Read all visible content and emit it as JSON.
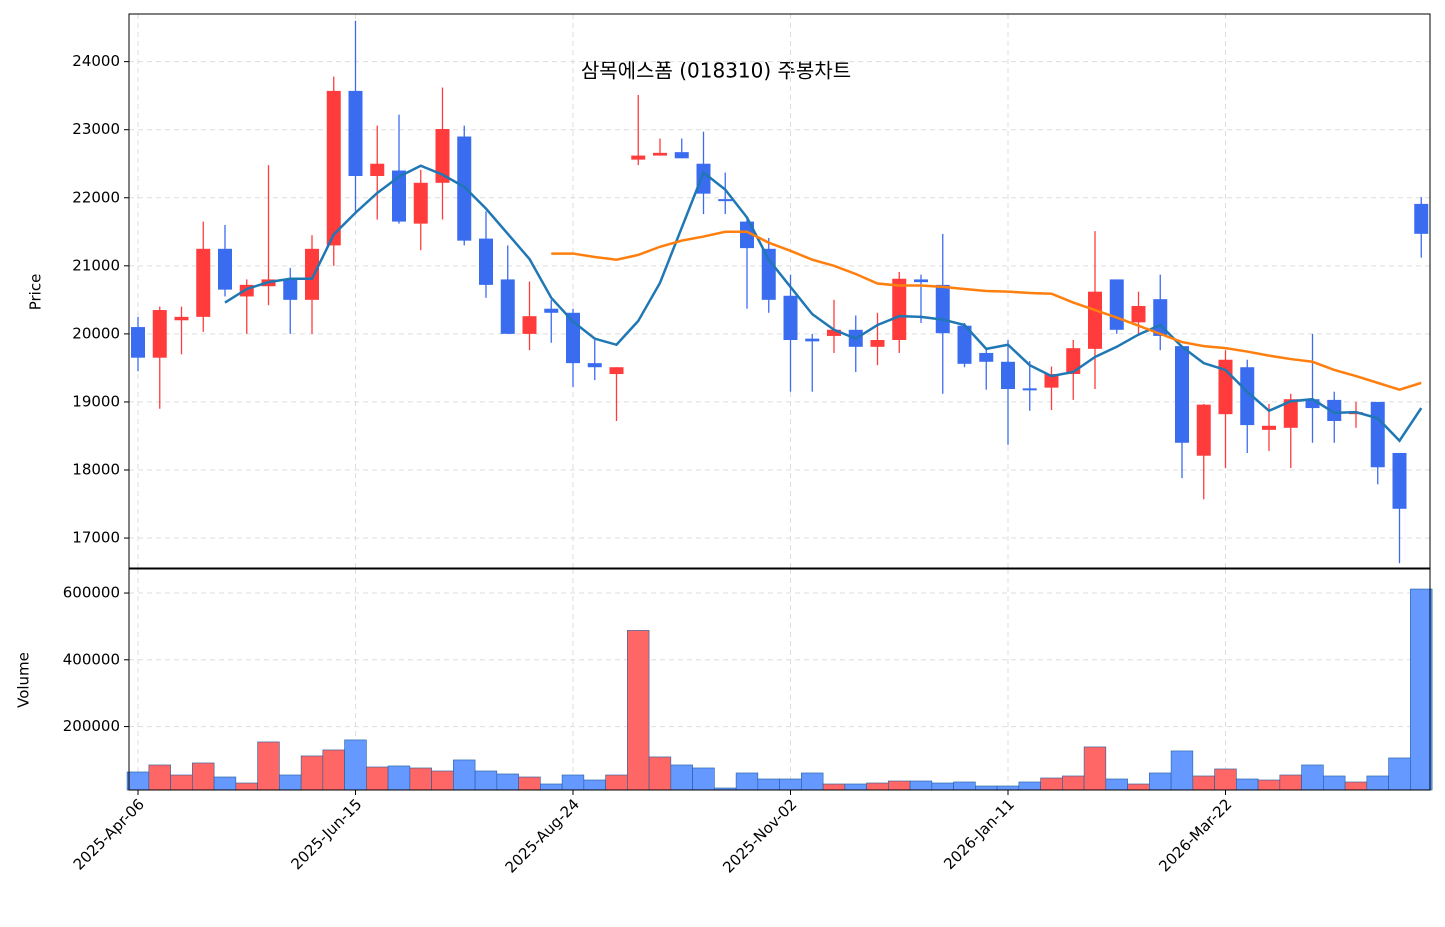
{
  "chart_data": {
    "type": "candlestick",
    "title": "삼목에스폼 (018310) 주봉차트",
    "ylabel": "Price",
    "categories": [
      "2025-Apr-06",
      null,
      null,
      null,
      null,
      null,
      null,
      null,
      null,
      null,
      "2025-Jun-15",
      null,
      null,
      null,
      null,
      null,
      null,
      null,
      null,
      null,
      "2025-Aug-24",
      null,
      null,
      null,
      null,
      null,
      null,
      null,
      null,
      null,
      "2025-Nov-02",
      null,
      null,
      null,
      null,
      null,
      null,
      null,
      null,
      null,
      "2026-Jan-11",
      null,
      null,
      null,
      null,
      null,
      null,
      null,
      null,
      null,
      "2026-Mar-22",
      null,
      null,
      null,
      null,
      null,
      null,
      null,
      null,
      null
    ],
    "open": [
      20100,
      19650,
      20200,
      20250,
      21250,
      20550,
      20700,
      20800,
      20500,
      21300,
      23570,
      22320,
      22400,
      21620,
      22220,
      22900,
      21400,
      20800,
      20000,
      20370,
      20310,
      19570,
      19410,
      22560,
      22620,
      22670,
      22500,
      21980,
      21650,
      21250,
      20560,
      19930,
      19970,
      20060,
      19810,
      19910,
      20800,
      20720,
      20120,
      19720,
      19590,
      19200,
      19210,
      19410,
      19780,
      20800,
      20170,
      20510,
      19820,
      18210,
      18820,
      19510,
      18590,
      18620,
      19040,
      19030,
      18820,
      19000,
      18250,
      21910
    ],
    "high": [
      20250,
      20400,
      20400,
      21650,
      21600,
      20800,
      22480,
      20970,
      21450,
      23780,
      24600,
      23060,
      23220,
      22410,
      23620,
      23060,
      21800,
      21300,
      20770,
      20500,
      20370,
      19910,
      19510,
      23510,
      22870,
      22870,
      22970,
      22370,
      21720,
      21410,
      20870,
      20000,
      20500,
      20270,
      20310,
      20910,
      20870,
      21470,
      20160,
      19800,
      19910,
      19600,
      19520,
      19910,
      21510,
      20800,
      20620,
      20870,
      19820,
      18970,
      19760,
      19620,
      18970,
      19120,
      20000,
      19150,
      19000,
      19000,
      18250,
      22010
    ],
    "low": [
      19450,
      18900,
      19700,
      20030,
      20550,
      20000,
      20420,
      20000,
      20000,
      21000,
      21800,
      21680,
      21620,
      21230,
      21680,
      21300,
      20530,
      20000,
      19760,
      19870,
      19220,
      19320,
      18720,
      22480,
      22620,
      22580,
      21760,
      21760,
      20370,
      20310,
      19150,
      19150,
      19720,
      19440,
      19540,
      19720,
      20160,
      19120,
      19510,
      19180,
      18370,
      18870,
      18880,
      19030,
      19190,
      20000,
      19970,
      19760,
      17880,
      17570,
      18030,
      18250,
      18280,
      18030,
      18400,
      18400,
      18620,
      17790,
      16630,
      21120
    ],
    "close": [
      19650,
      20350,
      20250,
      21250,
      20650,
      20720,
      20800,
      20500,
      21250,
      23570,
      22320,
      22500,
      21650,
      22220,
      23010,
      21370,
      20720,
      20000,
      20260,
      20310,
      19570,
      19510,
      19510,
      22620,
      22660,
      22580,
      22060,
      21950,
      21260,
      20500,
      19910,
      19890,
      20060,
      19810,
      19910,
      20810,
      20760,
      20010,
      19560,
      19590,
      19190,
      19170,
      19410,
      19790,
      20620,
      20060,
      20410,
      19970,
      18400,
      18960,
      19620,
      18660,
      18650,
      19040,
      18910,
      18720,
      18850,
      18040,
      17430,
      21470
    ],
    "up_color": "#ff3b3b",
    "down_color": "#3a6cf0",
    "lines": [
      {
        "color": "#1f77b4",
        "values": [
          null,
          null,
          null,
          null,
          20460,
          20660,
          20760,
          20810,
          20810,
          21460,
          21780,
          22070,
          22310,
          22470,
          22340,
          22160,
          21840,
          21470,
          21100,
          20530,
          20180,
          19930,
          19840,
          20190,
          20750,
          21560,
          22370,
          22120,
          21710,
          21090,
          20690,
          20290,
          20060,
          19930,
          20130,
          20260,
          20250,
          20210,
          20130,
          19780,
          19840,
          19540,
          19380,
          19440,
          19660,
          19810,
          19990,
          20130,
          19810,
          19570,
          19470,
          19150,
          18870,
          19010,
          19040,
          18840,
          18850,
          18760,
          18430,
          18910
        ]
      },
      {
        "color": "#ff7f0e",
        "values": [
          null,
          null,
          null,
          null,
          null,
          null,
          null,
          null,
          null,
          null,
          null,
          null,
          null,
          null,
          null,
          null,
          null,
          null,
          null,
          21180,
          21180,
          21130,
          21090,
          21160,
          21280,
          21370,
          21430,
          21500,
          21500,
          21340,
          21220,
          21090,
          21000,
          20880,
          20740,
          20710,
          20710,
          20690,
          20660,
          20630,
          20620,
          20600,
          20590,
          20460,
          20350,
          20240,
          20120,
          20000,
          19880,
          19820,
          19790,
          19740,
          19680,
          19630,
          19590,
          19470,
          19380,
          19280,
          19180,
          19280
        ]
      }
    ],
    "ylim": [
      16560,
      24700
    ],
    "yticks": [
      17000,
      18000,
      19000,
      20000,
      21000,
      22000,
      23000,
      24000
    ],
    "grid": true,
    "volume": {
      "ylabel": "Volume",
      "up_color": "#ff6666",
      "down_color": "#6699ff",
      "edge_color": "#1f5fa0",
      "values": [
        64000,
        85000,
        55000,
        91000,
        49000,
        31000,
        154000,
        55000,
        112000,
        130000,
        160000,
        79000,
        82000,
        76000,
        67000,
        100000,
        67000,
        58000,
        49000,
        28000,
        55000,
        40000,
        55000,
        488000,
        109000,
        85000,
        76000,
        16000,
        61000,
        43000,
        43000,
        61000,
        28000,
        28000,
        31000,
        37000,
        37000,
        31000,
        34000,
        22000,
        22000,
        34000,
        46000,
        52000,
        139000,
        43000,
        28000,
        61000,
        127000,
        52000,
        73000,
        43000,
        40000,
        55000,
        85000,
        52000,
        34000,
        52000,
        106000,
        612000
      ],
      "ylim": [
        10000,
        672000
      ],
      "yticks": [
        200000,
        400000,
        600000
      ]
    }
  }
}
